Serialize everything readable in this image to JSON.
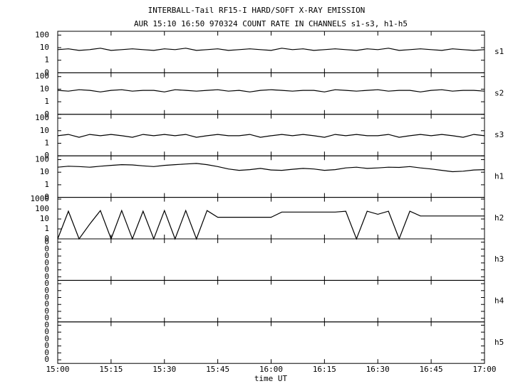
{
  "title": "INTERBALL-Tail RF15-I HARD/SOFT X-RAY EMISSION",
  "subtitle": "AUR 15:10 16:50 970324  COUNT RATE IN CHANNELS s1-s3, h1-h5",
  "x_axis": {
    "label": "time UT",
    "xlim": [
      900,
      1020
    ],
    "xticks": [
      {
        "value": 900,
        "label": "15:00"
      },
      {
        "value": 915,
        "label": "15:15"
      },
      {
        "value": 930,
        "label": "15:30"
      },
      {
        "value": 945,
        "label": "15:45"
      },
      {
        "value": 960,
        "label": "16:00"
      },
      {
        "value": 975,
        "label": "16:15"
      },
      {
        "value": 990,
        "label": "16:30"
      },
      {
        "value": 1005,
        "label": "16:45"
      },
      {
        "value": 1020,
        "label": "17:00"
      }
    ],
    "x": [
      900,
      903,
      906,
      909,
      912,
      915,
      918,
      921,
      924,
      927,
      930,
      933,
      936,
      939,
      942,
      945,
      948,
      951,
      954,
      957,
      960,
      963,
      966,
      969,
      972,
      975,
      978,
      981,
      984,
      987,
      990,
      993,
      996,
      999,
      1002,
      1005,
      1008,
      1011,
      1014,
      1017,
      1020
    ]
  },
  "chart_data": [
    {
      "type": "line",
      "label": "s1",
      "log": true,
      "color": "#000000",
      "ylim": [
        0.1,
        200
      ],
      "yticks": [
        {
          "value": 0.1,
          "label": "0"
        },
        1,
        10,
        100
      ],
      "values": [
        7,
        8,
        6,
        7,
        9,
        6,
        7,
        8,
        7,
        6,
        8,
        7,
        9,
        6,
        7,
        8,
        6,
        7,
        8,
        7,
        6,
        9,
        7,
        8,
        6,
        7,
        8,
        7,
        6,
        8,
        7,
        9,
        6,
        7,
        8,
        7,
        6,
        8,
        7,
        6,
        7
      ]
    },
    {
      "type": "line",
      "label": "s2",
      "log": true,
      "color": "#000000",
      "ylim": [
        0.1,
        200
      ],
      "yticks": [
        {
          "value": 0.1,
          "label": "0"
        },
        1,
        10,
        100
      ],
      "values": [
        8,
        7,
        9,
        8,
        6,
        8,
        9,
        7,
        8,
        8,
        6,
        9,
        8,
        7,
        8,
        9,
        7,
        8,
        6,
        8,
        9,
        8,
        7,
        8,
        8,
        6,
        9,
        8,
        7,
        8,
        9,
        7,
        8,
        8,
        6,
        8,
        9,
        7,
        8,
        8,
        7
      ]
    },
    {
      "type": "line",
      "label": "s3",
      "log": true,
      "color": "#000000",
      "ylim": [
        0.1,
        200
      ],
      "yticks": [
        {
          "value": 0.1,
          "label": "0"
        },
        1,
        10,
        100
      ],
      "values": [
        4,
        5,
        3,
        5,
        4,
        5,
        4,
        3,
        5,
        4,
        5,
        4,
        5,
        3,
        4,
        5,
        4,
        4,
        5,
        3,
        4,
        5,
        4,
        5,
        4,
        3,
        5,
        4,
        5,
        4,
        4,
        5,
        3,
        4,
        5,
        4,
        5,
        4,
        3,
        5,
        4
      ]
    },
    {
      "type": "line",
      "label": "h1",
      "log": true,
      "color": "#000000",
      "ylim": [
        0.1,
        200
      ],
      "yticks": [
        {
          "value": 0.1,
          "label": "0"
        },
        1,
        10,
        100
      ],
      "values": [
        25,
        30,
        28,
        25,
        30,
        35,
        40,
        38,
        32,
        28,
        35,
        40,
        45,
        50,
        40,
        28,
        18,
        14,
        16,
        20,
        15,
        14,
        17,
        20,
        18,
        14,
        16,
        22,
        25,
        20,
        22,
        25,
        24,
        28,
        22,
        18,
        14,
        11,
        12,
        15,
        16
      ]
    },
    {
      "type": "line",
      "label": "h2",
      "log": true,
      "color": "#000000",
      "ylim": [
        0.1,
        1500
      ],
      "yticks": [
        {
          "value": 0.1,
          "label": "0"
        },
        1,
        10,
        100,
        1000
      ],
      "values": [
        0.1,
        60,
        0.1,
        3,
        70,
        0.1,
        70,
        0.1,
        60,
        0.1,
        70,
        0.1,
        70,
        0.1,
        70,
        15,
        15,
        15,
        15,
        15,
        15,
        50,
        50,
        50,
        50,
        50,
        50,
        60,
        0.1,
        60,
        30,
        60,
        0.1,
        60,
        20,
        20,
        20,
        20,
        20,
        20,
        20
      ]
    },
    {
      "type": "line",
      "label": "h3",
      "log": true,
      "color": "#000000",
      "ylim": [
        3e-07,
        0.3
      ],
      "yticks": [
        {
          "value": 1e-06,
          "label": "0"
        },
        {
          "value": 1e-05,
          "label": "0"
        },
        {
          "value": 0.0001,
          "label": "0"
        },
        {
          "value": 0.001,
          "label": "0"
        },
        {
          "value": 0.01,
          "label": "0"
        },
        {
          "value": 0.1,
          "label": "0"
        }
      ]
    },
    {
      "type": "line",
      "label": "h4",
      "log": true,
      "color": "#000000",
      "ylim": [
        3e-07,
        0.3
      ],
      "yticks": [
        {
          "value": 1e-06,
          "label": "0"
        },
        {
          "value": 1e-05,
          "label": "0"
        },
        {
          "value": 0.0001,
          "label": "0"
        },
        {
          "value": 0.001,
          "label": "0"
        },
        {
          "value": 0.01,
          "label": "0"
        },
        {
          "value": 0.1,
          "label": "0"
        }
      ]
    },
    {
      "type": "line",
      "label": "h5",
      "log": true,
      "color": "#000000",
      "ylim": [
        3e-07,
        0.3
      ],
      "yticks": [
        {
          "value": 1e-06,
          "label": "0"
        },
        {
          "value": 1e-05,
          "label": "0"
        },
        {
          "value": 0.0001,
          "label": "0"
        },
        {
          "value": 0.001,
          "label": "0"
        },
        {
          "value": 0.01,
          "label": "0"
        },
        {
          "value": 0.1,
          "label": "0"
        }
      ]
    }
  ]
}
